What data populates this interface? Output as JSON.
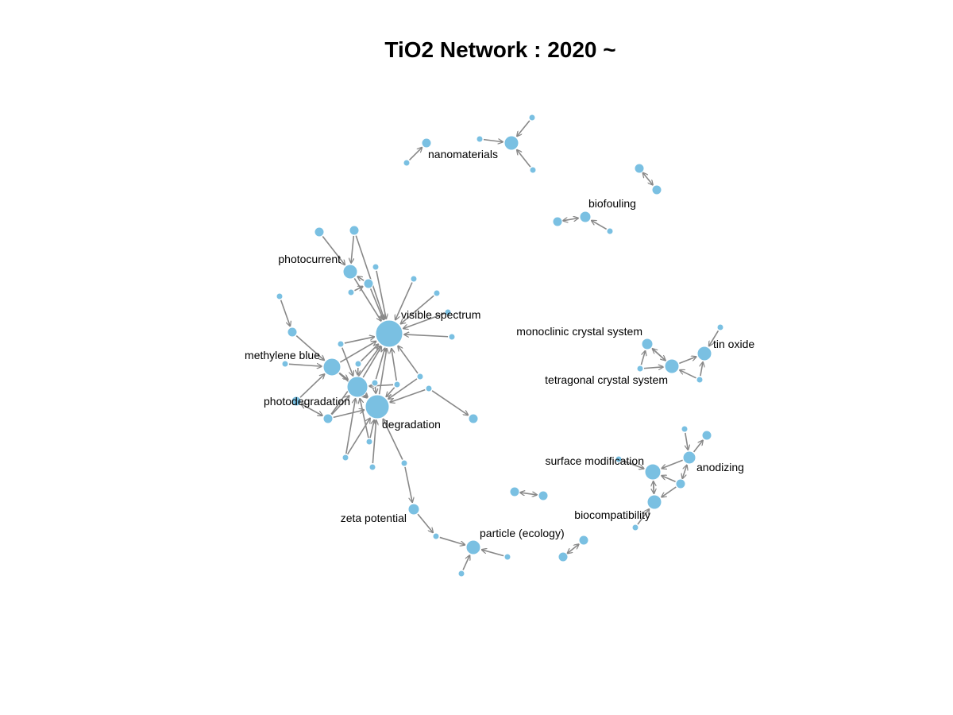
{
  "title": "TiO2 Network : 2020 ~",
  "colors": {
    "node": "#7ac0e2",
    "edge": "#888888",
    "background": "#ffffff",
    "text": "#000000"
  },
  "labels": [
    "nanomaterials",
    "biofouling",
    "photocurrent",
    "visible spectrum",
    "methylene blue",
    "photodegradation",
    "degradation",
    "monoclinic crystal system",
    "tin oxide",
    "tetragonal crystal system",
    "surface modification",
    "anodizing",
    "biocompatibility",
    "zeta potential",
    "particle (ecology)"
  ]
}
